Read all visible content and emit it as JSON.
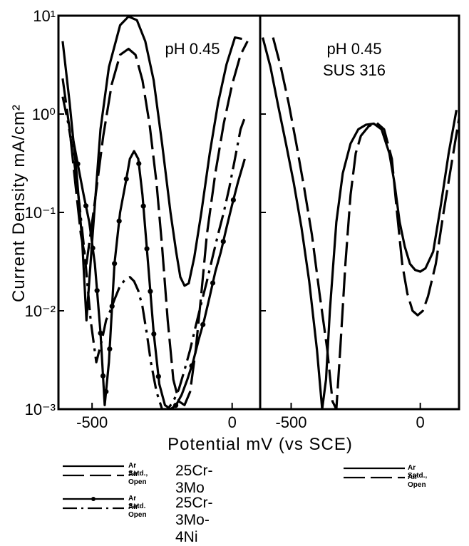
{
  "chart_data": {
    "type": "line",
    "ylabel": "Current Density  mA/cm²",
    "xlabel": "Potential  mV (vs SCE)",
    "yscale": "log",
    "ylim": [
      0.001,
      10
    ],
    "yticks": [
      "10¹",
      "10⁰",
      "10⁻¹",
      "10⁻²",
      "10⁻³"
    ],
    "grid": false,
    "panels": [
      {
        "annotation": [
          "pH 0.45"
        ],
        "xlim": [
          -620,
          100
        ],
        "xticks": [
          {
            "value": -500,
            "label": "-500"
          },
          {
            "value": 0,
            "label": "0"
          }
        ],
        "series": [
          {
            "legend": "25Cr-3Mo Ar Satd.",
            "style": "solid",
            "x": [
              -605,
              -580,
              -555,
              -535,
              -520,
              -500,
              -470,
              -440,
              -400,
              -370,
              -340,
              -310,
              -280,
              -250,
              -220,
              -200,
              -185,
              -170,
              -155,
              -135,
              -110,
              -80,
              -50,
              -20,
              10,
              35
            ],
            "y": [
              5.5,
              1.3,
              0.25,
              0.05,
              0.008,
              0.05,
              0.7,
              3.0,
              8.0,
              9.8,
              9.0,
              5.5,
              2.2,
              0.5,
              0.1,
              0.04,
              0.022,
              0.018,
              0.019,
              0.035,
              0.1,
              0.4,
              1.3,
              3.2,
              6.0,
              5.8
            ]
          },
          {
            "legend": "25Cr-3Mo Air Open",
            "style": "dashed",
            "x": [
              -605,
              -580,
              -560,
              -540,
              -520,
              -495,
              -460,
              -430,
              -400,
              -370,
              -345,
              -320,
              -295,
              -270,
              -250,
              -230,
              -210,
              -190,
              -170,
              -150,
              -130,
              -110,
              -90,
              -60,
              -30,
              0,
              30,
              55
            ],
            "y": [
              2.3,
              0.7,
              0.2,
              0.06,
              0.03,
              0.1,
              0.6,
              2.0,
              4.0,
              4.6,
              4.0,
              2.2,
              0.8,
              0.2,
              0.045,
              0.008,
              0.002,
              0.0012,
              0.0011,
              0.0015,
              0.004,
              0.015,
              0.06,
              0.25,
              0.8,
              2.0,
              4.0,
              5.5
            ]
          },
          {
            "legend": "25Cr-3Mo-4Ni Ar Satd.",
            "style": "solid-dot",
            "x": [
              -570,
              -550,
              -530,
              -510,
              -490,
              -470,
              -455,
              -440,
              -420,
              -400,
              -380,
              -365,
              -350,
              -335,
              -320,
              -300,
              -280,
              -260,
              -240,
              -220,
              -200,
              -180,
              -160,
              -140,
              -120,
              -100,
              -80,
              -60,
              -40,
              -20,
              0,
              20,
              45
            ],
            "y": [
              0.6,
              0.3,
              0.15,
              0.08,
              0.03,
              0.006,
              0.0011,
              0.003,
              0.03,
              0.1,
              0.2,
              0.35,
              0.42,
              0.35,
              0.15,
              0.03,
              0.006,
              0.0018,
              0.0011,
              0.001,
              0.0011,
              0.0014,
              0.002,
              0.003,
              0.005,
              0.008,
              0.014,
              0.025,
              0.04,
              0.07,
              0.12,
              0.2,
              0.35
            ]
          },
          {
            "legend": "25Cr-3Mo-4Ni Air Open",
            "style": "dash-dot",
            "x": [
              -605,
              -585,
              -565,
              -545,
              -525,
              -505,
              -485,
              -465,
              -450,
              -435,
              -420,
              -400,
              -380,
              -365,
              -350,
              -335,
              -320,
              -305,
              -290,
              -270,
              -250,
              -230,
              -210,
              -190,
              -170,
              -150,
              -130,
              -110,
              -90,
              -70,
              -50,
              -30,
              -10,
              10,
              30,
              50
            ],
            "y": [
              1.5,
              0.8,
              0.35,
              0.12,
              0.035,
              0.008,
              0.003,
              0.005,
              0.008,
              0.01,
              0.013,
              0.018,
              0.021,
              0.022,
              0.02,
              0.016,
              0.011,
              0.006,
              0.003,
              0.0015,
              0.001,
              0.001,
              0.0012,
              0.0016,
              0.0025,
              0.004,
              0.007,
              0.012,
              0.02,
              0.035,
              0.06,
              0.1,
              0.18,
              0.35,
              0.7,
              1.0
            ]
          }
        ]
      },
      {
        "annotation": [
          "pH 0.45",
          "SUS 316"
        ],
        "xlim": [
          -620,
          150
        ],
        "xticks": [
          {
            "value": -500,
            "label": "-500"
          },
          {
            "value": 0,
            "label": "0"
          }
        ],
        "series": [
          {
            "legend": "SUS 316 Ar Satd.",
            "style": "solid",
            "x": [
              -610,
              -580,
              -550,
              -520,
              -490,
              -460,
              -430,
              -400,
              -380,
              -365,
              -350,
              -325,
              -300,
              -270,
              -240,
              -210,
              -180,
              -150,
              -120,
              -100,
              -80,
              -60,
              -40,
              -20,
              0,
              20,
              50,
              80,
              110,
              140
            ],
            "y": [
              6.0,
              3.0,
              1.2,
              0.5,
              0.2,
              0.07,
              0.02,
              0.004,
              0.001,
              0.002,
              0.01,
              0.08,
              0.25,
              0.5,
              0.7,
              0.78,
              0.8,
              0.7,
              0.4,
              0.2,
              0.08,
              0.045,
              0.03,
              0.026,
              0.025,
              0.027,
              0.04,
              0.12,
              0.4,
              1.1
            ]
          },
          {
            "legend": "SUS 316 Air Open",
            "style": "dashed",
            "x": [
              -570,
              -540,
              -510,
              -480,
              -450,
              -420,
              -390,
              -360,
              -340,
              -325,
              -310,
              -290,
              -270,
              -250,
              -230,
              -200,
              -170,
              -140,
              -110,
              -90,
              -70,
              -50,
              -30,
              -10,
              10,
              30,
              60,
              90,
              120,
              150
            ],
            "y": [
              6.0,
              3.0,
              1.3,
              0.5,
              0.18,
              0.06,
              0.015,
              0.004,
              0.0012,
              0.001,
              0.004,
              0.03,
              0.15,
              0.4,
              0.6,
              0.75,
              0.82,
              0.7,
              0.35,
              0.1,
              0.03,
              0.015,
              0.01,
              0.009,
              0.01,
              0.014,
              0.03,
              0.1,
              0.3,
              0.9
            ]
          }
        ]
      }
    ]
  },
  "legend": {
    "left": {
      "groups": [
        {
          "alloy": "25Cr-3Mo",
          "entries": [
            {
              "style": "solid",
              "label": "Ar Satd.,"
            },
            {
              "style": "dashed",
              "label": "Air Open"
            }
          ]
        },
        {
          "alloy": "25Cr-3Mo-4Ni",
          "entries": [
            {
              "style": "solid-dot",
              "label": "Ar Satd."
            },
            {
              "style": "dash-dot",
              "label": "Air Open"
            }
          ]
        }
      ]
    },
    "right": {
      "entries": [
        {
          "style": "solid",
          "label": "Ar Satd.,"
        },
        {
          "style": "dashed",
          "label": "Air Open"
        }
      ]
    }
  }
}
